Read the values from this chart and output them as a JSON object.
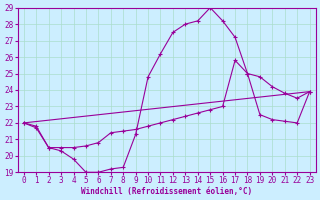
{
  "xlabel": "Windchill (Refroidissement éolien,°C)",
  "bg_color": "#cceeff",
  "grid_color": "#aaddcc",
  "line_color": "#990099",
  "line1_x": [
    0,
    1,
    2,
    3,
    4,
    5,
    6,
    7,
    8,
    9,
    10,
    11,
    12,
    13,
    14,
    15,
    16,
    17,
    18,
    19,
    20,
    21,
    22,
    23
  ],
  "line1_y": [
    22.0,
    21.8,
    20.5,
    20.3,
    19.8,
    19.0,
    19.0,
    19.2,
    19.3,
    21.3,
    24.8,
    26.2,
    27.5,
    28.0,
    28.2,
    29.0,
    28.2,
    27.2,
    25.0,
    24.8,
    24.2,
    23.8,
    23.5,
    23.9
  ],
  "line2_x": [
    0,
    1,
    2,
    3,
    4,
    5,
    6,
    7,
    8,
    9,
    10,
    11,
    12,
    13,
    14,
    15,
    16,
    17,
    18,
    19,
    20,
    21,
    22,
    23
  ],
  "line2_y": [
    22.0,
    21.7,
    20.5,
    20.5,
    20.5,
    20.6,
    20.8,
    21.4,
    21.5,
    21.6,
    21.8,
    22.0,
    22.2,
    22.4,
    22.6,
    22.8,
    23.0,
    25.8,
    25.0,
    22.5,
    22.2,
    22.1,
    22.0,
    23.9
  ],
  "line3_x": [
    0,
    23
  ],
  "line3_y": [
    22.0,
    23.9
  ],
  "ylim": [
    19,
    29
  ],
  "xlim": [
    -0.5,
    23.5
  ],
  "yticks": [
    19,
    20,
    21,
    22,
    23,
    24,
    25,
    26,
    27,
    28,
    29
  ],
  "xticks": [
    0,
    1,
    2,
    3,
    4,
    5,
    6,
    7,
    8,
    9,
    10,
    11,
    12,
    13,
    14,
    15,
    16,
    17,
    18,
    19,
    20,
    21,
    22,
    23
  ]
}
